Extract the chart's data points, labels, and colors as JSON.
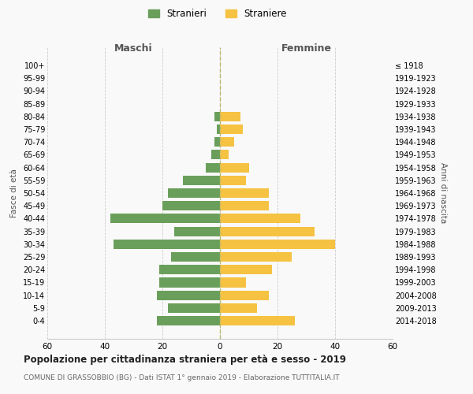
{
  "age_groups": [
    "0-4",
    "5-9",
    "10-14",
    "15-19",
    "20-24",
    "25-29",
    "30-34",
    "35-39",
    "40-44",
    "45-49",
    "50-54",
    "55-59",
    "60-64",
    "65-69",
    "70-74",
    "75-79",
    "80-84",
    "85-89",
    "90-94",
    "95-99",
    "100+"
  ],
  "birth_years": [
    "2014-2018",
    "2009-2013",
    "2004-2008",
    "1999-2003",
    "1994-1998",
    "1989-1993",
    "1984-1988",
    "1979-1983",
    "1974-1978",
    "1969-1973",
    "1964-1968",
    "1959-1963",
    "1954-1958",
    "1949-1953",
    "1944-1948",
    "1939-1943",
    "1934-1938",
    "1929-1933",
    "1924-1928",
    "1919-1923",
    "≤ 1918"
  ],
  "maschi": [
    22,
    18,
    22,
    21,
    21,
    17,
    37,
    16,
    38,
    20,
    18,
    13,
    5,
    3,
    2,
    1,
    2,
    0,
    0,
    0,
    0
  ],
  "femmine": [
    26,
    13,
    17,
    9,
    18,
    25,
    40,
    33,
    28,
    17,
    17,
    9,
    10,
    3,
    5,
    8,
    7,
    0,
    0,
    0,
    0
  ],
  "maschi_color": "#6a9f5b",
  "femmine_color": "#f5c242",
  "background_color": "#f9f9f9",
  "grid_color": "#cccccc",
  "title": "Popolazione per cittadinanza straniera per età e sesso - 2019",
  "subtitle": "COMUNE DI GRASSOBBIO (BG) - Dati ISTAT 1° gennaio 2019 - Elaborazione TUTTITALIA.IT",
  "xlabel_left": "Maschi",
  "xlabel_right": "Femmine",
  "ylabel": "Fasce di età",
  "ylabel_right": "Anni di nascita",
  "legend_maschi": "Stranieri",
  "legend_femmine": "Straniere",
  "xlim": 60
}
